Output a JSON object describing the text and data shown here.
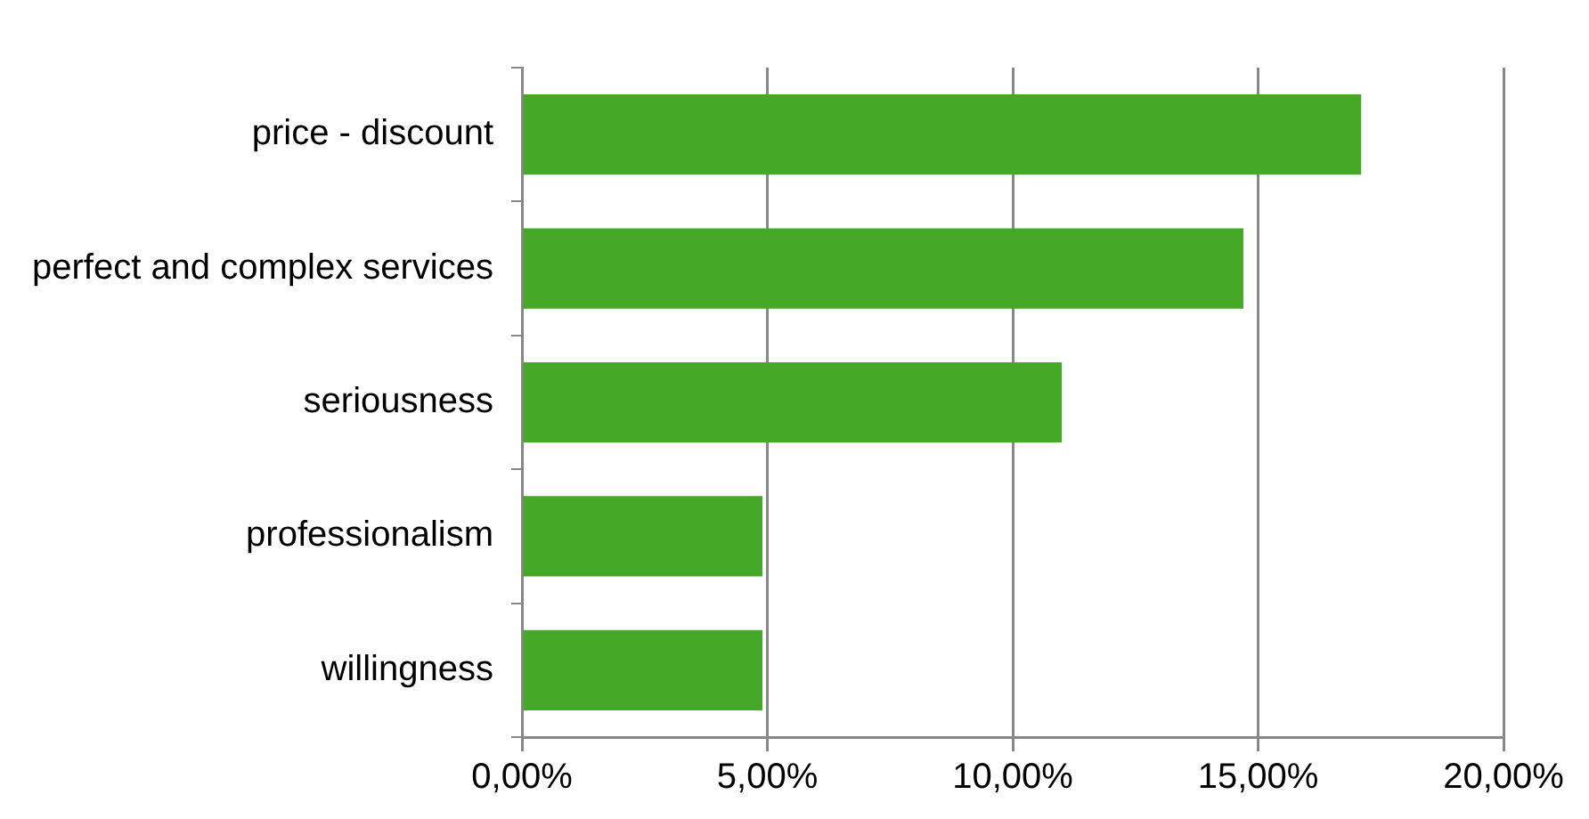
{
  "chart_data": {
    "type": "bar",
    "orientation": "horizontal",
    "categories": [
      "price - discount",
      "perfect and complex services",
      "seriousness",
      "professionalism",
      "willingness"
    ],
    "values": [
      17.1,
      14.7,
      11.0,
      4.9,
      4.9
    ],
    "color": "#45a826",
    "xlim": [
      0,
      20
    ],
    "xticks": [
      {
        "value": 0,
        "label": "0,00%"
      },
      {
        "value": 5,
        "label": "5,00%"
      },
      {
        "value": 10,
        "label": "10,00%"
      },
      {
        "value": 15,
        "label": "15,00%"
      },
      {
        "value": 20,
        "label": "20,00%"
      }
    ],
    "grid": "x",
    "legend": false
  }
}
